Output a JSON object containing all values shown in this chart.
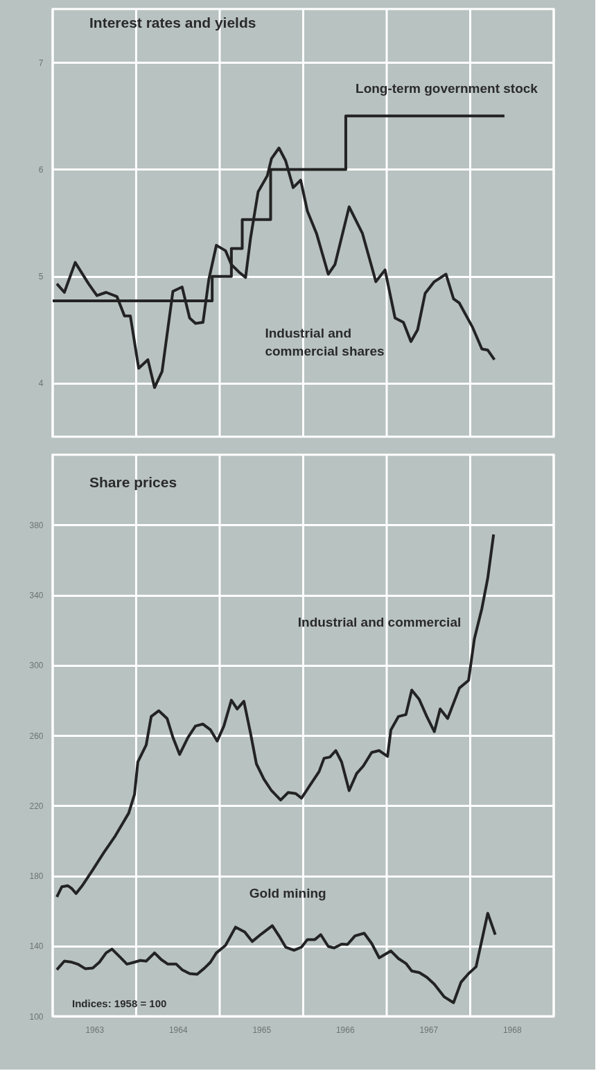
{
  "chart_data": [
    {
      "type": "line",
      "title": "Interest rates and yields",
      "xlim": [
        1963,
        1969
      ],
      "xticks": [
        {
          "value": 1963,
          "label": null
        },
        {
          "value": 1964,
          "label": null
        },
        {
          "value": 1965,
          "label": null
        },
        {
          "value": 1966,
          "label": null
        },
        {
          "value": 1967,
          "label": null
        },
        {
          "value": 1968,
          "label": null
        },
        {
          "value": 1969,
          "label": null
        }
      ],
      "ylim": [
        3.5,
        7.5
      ],
      "yticks": [
        4,
        5,
        6,
        7
      ],
      "grid": true,
      "tick_labels": "y",
      "series": [
        {
          "name": "Long-term government stock",
          "type": "step",
          "color": "#232323",
          "x": [
            1963.0,
            1964.91,
            1965.14,
            1965.27,
            1965.61,
            1966.51,
            1968.41
          ],
          "values": [
            4.77,
            5.0,
            5.26,
            5.53,
            6.0,
            6.5,
            6.5
          ]
        },
        {
          "name": "Industrial and\ncommercial shares",
          "color": "#232323",
          "x": [
            1963.05,
            1963.14,
            1963.27,
            1963.43,
            1963.53,
            1963.64,
            1963.77,
            1963.86,
            1963.93,
            1964.03,
            1964.14,
            1964.22,
            1964.31,
            1964.44,
            1964.55,
            1964.64,
            1964.71,
            1964.8,
            1964.87,
            1964.96,
            1965.07,
            1965.14,
            1965.23,
            1965.31,
            1965.37,
            1965.46,
            1965.57,
            1965.62,
            1965.71,
            1965.79,
            1965.88,
            1965.97,
            1966.05,
            1966.16,
            1966.3,
            1966.38,
            1966.55,
            1966.71,
            1966.87,
            1966.98,
            1967.1,
            1967.2,
            1967.29,
            1967.37,
            1967.46,
            1967.57,
            1967.71,
            1967.8,
            1967.87,
            1968.03,
            1968.14,
            1968.21,
            1968.29
          ],
          "values": [
            4.93,
            4.85,
            5.13,
            4.93,
            4.82,
            4.85,
            4.81,
            4.63,
            4.63,
            4.14,
            4.22,
            3.96,
            4.11,
            4.86,
            4.9,
            4.61,
            4.56,
            4.57,
            4.97,
            5.29,
            5.24,
            5.11,
            5.04,
            4.99,
            5.36,
            5.79,
            5.94,
            6.1,
            6.2,
            6.08,
            5.83,
            5.9,
            5.61,
            5.4,
            5.02,
            5.11,
            5.65,
            5.4,
            4.95,
            5.06,
            4.61,
            4.57,
            4.39,
            4.5,
            4.84,
            4.95,
            5.02,
            4.79,
            4.75,
            4.52,
            4.32,
            4.31,
            4.22
          ]
        }
      ]
    },
    {
      "type": "line",
      "title": "Share prices",
      "annotations": [
        "Indices: 1958 = 100"
      ],
      "xlim": [
        1963,
        1969
      ],
      "xticks": [
        {
          "value": 1963,
          "label": null
        },
        {
          "value": 1963.5,
          "label": "1963"
        },
        {
          "value": 1964,
          "label": null
        },
        {
          "value": 1964.5,
          "label": "1964"
        },
        {
          "value": 1965,
          "label": null
        },
        {
          "value": 1965.5,
          "label": "1965"
        },
        {
          "value": 1966,
          "label": null
        },
        {
          "value": 1966.5,
          "label": "1966"
        },
        {
          "value": 1967,
          "label": null
        },
        {
          "value": 1967.5,
          "label": "1967"
        },
        {
          "value": 1968,
          "label": null
        },
        {
          "value": 1968.5,
          "label": "1968"
        },
        {
          "value": 1969,
          "label": null
        }
      ],
      "ylim": [
        100,
        420
      ],
      "yticks": [
        100,
        140,
        180,
        220,
        260,
        300,
        340,
        380
      ],
      "grid": true,
      "series": [
        {
          "name": "Industrial and commercial",
          "color": "#232323",
          "x": [
            1963.05,
            1963.11,
            1963.18,
            1963.23,
            1963.28,
            1963.36,
            1963.48,
            1963.61,
            1963.75,
            1963.91,
            1963.98,
            1964.02,
            1964.12,
            1964.18,
            1964.27,
            1964.37,
            1964.44,
            1964.52,
            1964.62,
            1964.71,
            1964.8,
            1964.89,
            1964.97,
            1965.05,
            1965.14,
            1965.21,
            1965.29,
            1965.37,
            1965.44,
            1965.53,
            1965.62,
            1965.73,
            1965.82,
            1965.91,
            1965.98,
            1966.07,
            1966.19,
            1966.25,
            1966.32,
            1966.39,
            1966.46,
            1966.55,
            1966.64,
            1966.72,
            1966.82,
            1966.91,
            1967.01,
            1967.05,
            1967.14,
            1967.23,
            1967.3,
            1967.39,
            1967.48,
            1967.57,
            1967.64,
            1967.73,
            1967.87,
            1967.98,
            1968.05,
            1968.14,
            1968.21,
            1968.28
          ],
          "values": [
            168,
            173.8,
            174.4,
            172.7,
            169.9,
            174.8,
            183.4,
            193.1,
            202.8,
            215.7,
            226.5,
            244.9,
            254.6,
            270.8,
            274.1,
            269.7,
            258.9,
            249.2,
            258.9,
            265.4,
            266.5,
            263.2,
            256.8,
            265.4,
            280.1,
            275.1,
            279.5,
            261.1,
            243.8,
            235.1,
            228.6,
            223.2,
            227.5,
            226.9,
            224.3,
            230.8,
            239.4,
            247,
            247.7,
            251.4,
            244.9,
            228.6,
            238.3,
            242.6,
            250.3,
            251.4,
            248.1,
            263.2,
            270.8,
            271.9,
            285.9,
            280.5,
            270.8,
            262.2,
            275.1,
            269.7,
            287,
            291.4,
            315.1,
            332.4,
            349.7,
            374.6
          ]
        },
        {
          "name": "Gold mining",
          "color": "#232323",
          "x": [
            1963.05,
            1963.14,
            1963.23,
            1963.3,
            1963.39,
            1963.48,
            1963.56,
            1963.64,
            1963.71,
            1963.8,
            1963.89,
            1963.98,
            1964.05,
            1964.12,
            1964.22,
            1964.3,
            1964.38,
            1964.48,
            1964.55,
            1964.64,
            1964.73,
            1964.82,
            1964.89,
            1964.96,
            1965.07,
            1965.19,
            1965.3,
            1965.39,
            1965.5,
            1965.63,
            1965.71,
            1965.79,
            1965.89,
            1965.98,
            1966.05,
            1966.14,
            1966.21,
            1966.3,
            1966.37,
            1966.46,
            1966.53,
            1966.62,
            1966.73,
            1966.82,
            1966.91,
            1967.05,
            1967.14,
            1967.23,
            1967.3,
            1967.39,
            1967.48,
            1967.57,
            1967.69,
            1967.8,
            1967.89,
            1967.98,
            1968.07,
            1968.21,
            1968.3
          ],
          "values": [
            126.5,
            131.4,
            130.8,
            129.7,
            127.1,
            127.5,
            130.8,
            136.1,
            138.3,
            134,
            129.7,
            130.8,
            131.8,
            131.4,
            136.1,
            132.3,
            129.7,
            129.7,
            126.5,
            124.3,
            123.9,
            127.5,
            130.8,
            136.1,
            140.4,
            150.8,
            148,
            142.6,
            146.9,
            151.6,
            145.8,
            139.4,
            137.6,
            139.4,
            143.7,
            143.7,
            146.5,
            139.8,
            138.9,
            141.1,
            140.9,
            145.8,
            147.3,
            141.5,
            133.3,
            137.2,
            132.9,
            130.1,
            125.8,
            124.9,
            122.2,
            118.3,
            111,
            107.7,
            119.4,
            124.3,
            128.2,
            158.7,
            146.5
          ]
        }
      ]
    }
  ]
}
